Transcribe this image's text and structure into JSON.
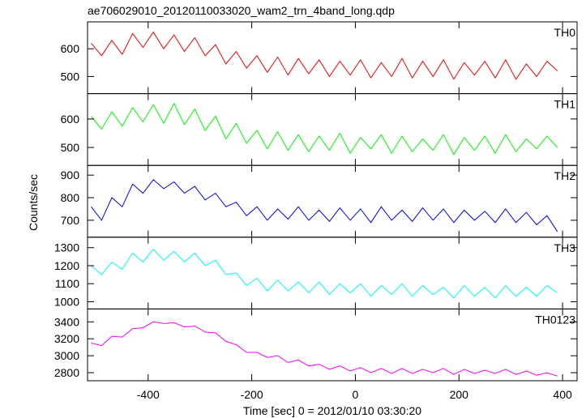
{
  "chart_data": {
    "type": "line",
    "title": "ae706029010_20120110033020_wam2_trn_4band_long.qdp",
    "ylabel": "Counts/sec",
    "xlabel": "Time [sec] 0 = 2012/01/10 03:30:20",
    "xlim": [
      -517,
      428
    ],
    "xticks": [
      -400,
      -200,
      0,
      200,
      400
    ],
    "panels": [
      {
        "name": "TH0",
        "color": "#ff0000",
        "ylim": [
          438,
          697
        ],
        "yticks": [
          500,
          600
        ],
        "x": [
          -510,
          -490,
          -470,
          -450,
          -430,
          -410,
          -390,
          -370,
          -350,
          -330,
          -310,
          -290,
          -270,
          -250,
          -230,
          -210,
          -190,
          -170,
          -150,
          -130,
          -110,
          -90,
          -70,
          -50,
          -30,
          -10,
          10,
          30,
          50,
          70,
          90,
          110,
          130,
          150,
          170,
          190,
          210,
          230,
          250,
          270,
          290,
          310,
          330,
          350,
          370,
          390
        ],
        "values": [
          620,
          575,
          630,
          580,
          655,
          605,
          660,
          600,
          650,
          590,
          640,
          575,
          615,
          545,
          590,
          530,
          575,
          515,
          570,
          505,
          565,
          510,
          560,
          500,
          555,
          505,
          560,
          495,
          550,
          500,
          565,
          495,
          555,
          500,
          560,
          490,
          550,
          505,
          555,
          495,
          560,
          490,
          545,
          500,
          555,
          520
        ]
      },
      {
        "name": "TH1",
        "color": "#00ff00",
        "ylim": [
          437,
          689
        ],
        "yticks": [
          500,
          600
        ],
        "x": [
          -510,
          -490,
          -470,
          -450,
          -430,
          -410,
          -390,
          -370,
          -350,
          -330,
          -310,
          -290,
          -270,
          -250,
          -230,
          -210,
          -190,
          -170,
          -150,
          -130,
          -110,
          -90,
          -70,
          -50,
          -30,
          -10,
          10,
          30,
          50,
          70,
          90,
          110,
          130,
          150,
          170,
          190,
          210,
          230,
          250,
          270,
          290,
          310,
          330,
          350,
          370,
          390
        ],
        "values": [
          610,
          565,
          625,
          575,
          640,
          590,
          650,
          585,
          655,
          580,
          635,
          560,
          610,
          530,
          585,
          515,
          560,
          495,
          555,
          490,
          545,
          485,
          540,
          490,
          550,
          480,
          535,
          495,
          545,
          480,
          540,
          485,
          530,
          490,
          545,
          475,
          535,
          490,
          540,
          480,
          545,
          485,
          530,
          495,
          540,
          500
        ]
      },
      {
        "name": "TH2",
        "color": "#0000ff",
        "ylim": [
          625,
          943
        ],
        "yticks": [
          700,
          800,
          900
        ],
        "x": [
          -510,
          -490,
          -470,
          -450,
          -430,
          -410,
          -390,
          -370,
          -350,
          -330,
          -310,
          -290,
          -270,
          -250,
          -230,
          -210,
          -190,
          -170,
          -150,
          -130,
          -110,
          -90,
          -70,
          -50,
          -30,
          -10,
          10,
          30,
          50,
          70,
          90,
          110,
          130,
          150,
          170,
          190,
          210,
          230,
          250,
          270,
          290,
          310,
          330,
          350,
          370,
          390
        ],
        "values": [
          760,
          700,
          800,
          760,
          860,
          820,
          880,
          840,
          870,
          820,
          850,
          790,
          820,
          760,
          780,
          720,
          760,
          700,
          750,
          705,
          760,
          700,
          745,
          695,
          755,
          700,
          750,
          690,
          760,
          700,
          745,
          695,
          755,
          700,
          750,
          690,
          745,
          700,
          740,
          690,
          750,
          690,
          735,
          680,
          720,
          650
        ]
      },
      {
        "name": "TH3",
        "color": "#00ffff",
        "ylim": [
          960,
          1358
        ],
        "yticks": [
          1000,
          1100,
          1200,
          1300
        ],
        "x": [
          -510,
          -490,
          -470,
          -450,
          -430,
          -410,
          -390,
          -370,
          -350,
          -330,
          -310,
          -290,
          -270,
          -250,
          -230,
          -210,
          -190,
          -170,
          -150,
          -130,
          -110,
          -90,
          -70,
          -50,
          -30,
          -10,
          10,
          30,
          50,
          70,
          90,
          110,
          130,
          150,
          170,
          190,
          210,
          230,
          250,
          270,
          290,
          310,
          330,
          350,
          370,
          390
        ],
        "values": [
          1200,
          1150,
          1220,
          1180,
          1270,
          1220,
          1290,
          1230,
          1280,
          1220,
          1270,
          1200,
          1230,
          1150,
          1160,
          1090,
          1130,
          1060,
          1120,
          1060,
          1110,
          1050,
          1110,
          1040,
          1100,
          1050,
          1100,
          1030,
          1090,
          1040,
          1100,
          1030,
          1090,
          1040,
          1080,
          1020,
          1090,
          1030,
          1080,
          1020,
          1090,
          1030,
          1080,
          1030,
          1090,
          1050
        ]
      },
      {
        "name": "TH0123",
        "color": "#ff00ff",
        "ylim": [
          2705,
          3552
        ],
        "yticks": [
          2800,
          3000,
          3200,
          3400
        ],
        "x": [
          -510,
          -490,
          -470,
          -450,
          -430,
          -410,
          -390,
          -370,
          -350,
          -330,
          -310,
          -290,
          -270,
          -250,
          -230,
          -210,
          -190,
          -170,
          -150,
          -130,
          -110,
          -90,
          -70,
          -50,
          -30,
          -10,
          10,
          30,
          50,
          70,
          90,
          110,
          130,
          150,
          170,
          190,
          210,
          230,
          250,
          270,
          290,
          310,
          330,
          350,
          370,
          390
        ],
        "values": [
          3150,
          3120,
          3230,
          3220,
          3320,
          3330,
          3400,
          3380,
          3390,
          3340,
          3350,
          3280,
          3270,
          3170,
          3130,
          3040,
          3040,
          2980,
          3000,
          2920,
          2950,
          2880,
          2900,
          2840,
          2880,
          2820,
          2860,
          2800,
          2850,
          2790,
          2850,
          2790,
          2840,
          2800,
          2850,
          2780,
          2840,
          2790,
          2830,
          2790,
          2840,
          2780,
          2820,
          2770,
          2800,
          2760
        ]
      }
    ]
  }
}
